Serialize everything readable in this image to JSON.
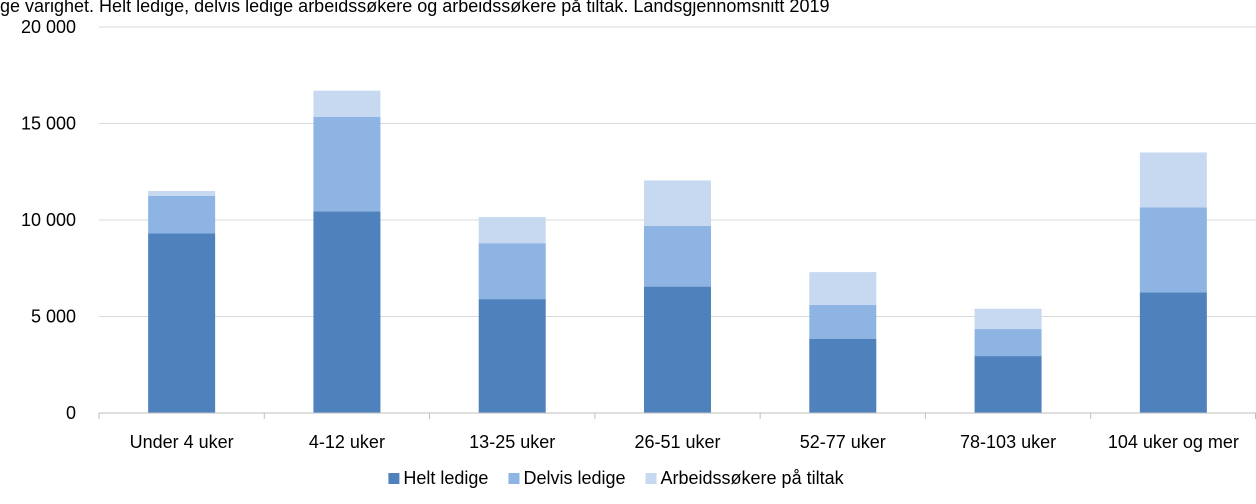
{
  "top_clipped_text": "ge varighet. Helt ledige, delvis ledige arbeidssøkere og arbeidssøkere på tiltak. Landsgjennomsnitt 2019",
  "chart_data": {
    "type": "bar",
    "stacked": true,
    "title": "",
    "xlabel": "",
    "ylabel": "",
    "ylim": [
      0,
      20000
    ],
    "yticks": [
      0,
      5000,
      10000,
      15000,
      20000
    ],
    "ytick_labels": [
      "0",
      "5 000",
      "10 000",
      "15 000",
      "20 000"
    ],
    "grid": true,
    "legend_position": "bottom",
    "categories": [
      "Under 4 uker",
      "4-12 uker",
      "13-25 uker",
      "26-51 uker",
      "52-77 uker",
      "78-103 uker",
      "104 uker og mer"
    ],
    "series": [
      {
        "name": "Helt ledige",
        "color": "#4f81bd",
        "values": [
          9300,
          10450,
          5900,
          6550,
          3850,
          2950,
          6250
        ]
      },
      {
        "name": "Delvis ledige",
        "color": "#8eb4e3",
        "values": [
          1950,
          4900,
          2900,
          3150,
          1750,
          1400,
          4400
        ]
      },
      {
        "name": "Arbeidssøkere på tiltak",
        "color": "#c6d9f1",
        "values": [
          250,
          1350,
          1350,
          2350,
          1700,
          1050,
          2850
        ]
      }
    ]
  }
}
